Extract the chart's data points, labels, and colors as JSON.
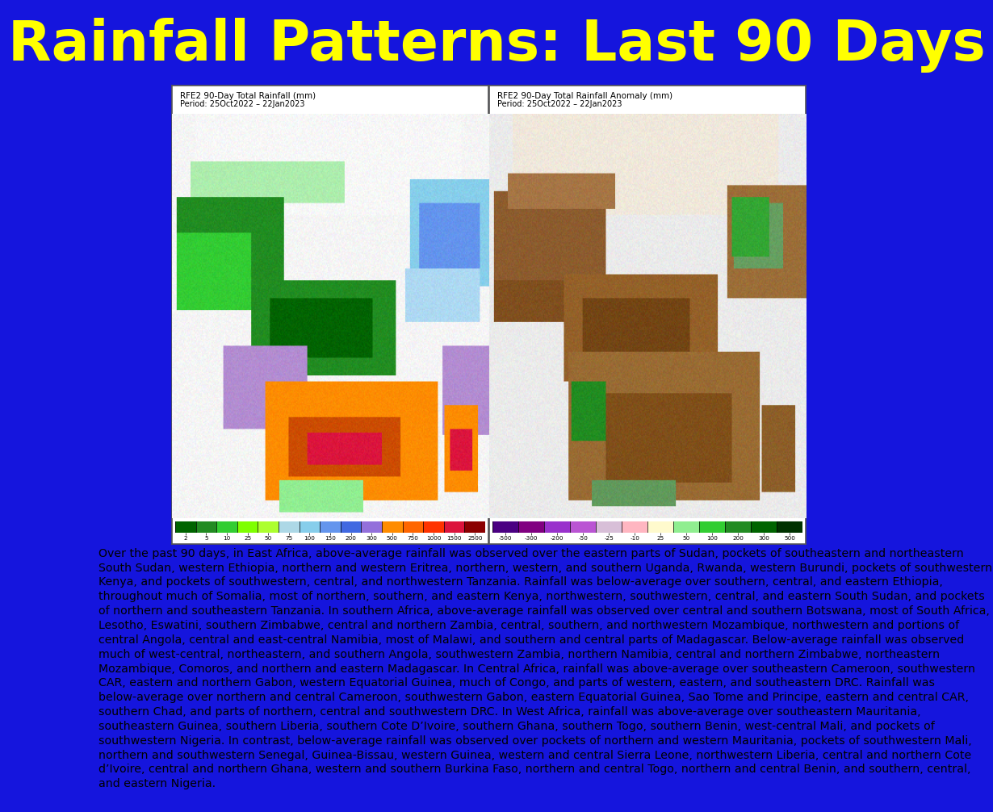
{
  "title": "Rainfall Patterns: Last 90 Days",
  "title_color": "#FFFF00",
  "title_fontsize": 50,
  "title_fontweight": "bold",
  "bg_color": "#1515DD",
  "left_map_title": "RFE2 90-Day Total Rainfall (mm)",
  "left_map_period": "Period: 25Oct2022 – 22Jan2023",
  "right_map_title": "RFE2 90-Day Total Rainfall Anomaly (mm)",
  "right_map_period": "Period: 25Oct2022 – 22Jan2023",
  "description": "Over the past 90 days, in East Africa, above-average rainfall was observed over the eastern parts of Sudan, pockets of southeastern and northeastern South Sudan, western Ethiopia, northern and western Eritrea, northern, western, and southern Uganda, Rwanda, western Burundi, pockets of southwestern Kenya, and pockets of southwestern, central, and northwestern Tanzania. Rainfall was below-average over southern, central, and eastern Ethiopia, throughout much of Somalia, most of northern, southern, and eastern Kenya, northwestern, southwestern, central, and eastern South Sudan, and pockets of northern and southeastern Tanzania. In southern Africa, above-average rainfall was observed over central and southern Botswana, most of South Africa, Lesotho, Eswatini, southern Zimbabwe, central and northern Zambia, central, southern, and northwestern Mozambique, northwestern and portions of central Angola, central and east-central Namibia, most of Malawi, and southern and central parts of Madagascar. Below-average rainfall was observed much of west-central, northeastern, and southern Angola, southwestern Zambia, northern Namibia, central and northern Zimbabwe, northeastern Mozambique, Comoros, and northern and eastern Madagascar. In Central Africa, rainfall was above-average over southeastern Cameroon, southwestern CAR, eastern and northern Gabon, western Equatorial Guinea, much of Congo, and parts of western, eastern, and southeastern DRC. Rainfall was below-average over northern and central Cameroon, southwestern Gabon, eastern Equatorial Guinea, Sao Tome and Principe, eastern and central CAR, southern Chad, and parts of northern, central and southwestern DRC. In West Africa, rainfall was above-average over southeastern Mauritania, southeastern Guinea, southern Liberia, southern Cote D’Ivoire, southern Ghana, southern Togo, southern Benin, west-central Mali, and pockets of southwestern Nigeria. In contrast, below-average rainfall was observed over pockets of northern and western Mauritania, pockets of southwestern Mali, northern and southwestern Senegal, Guinea-Bissau, western Guinea, western and central Sierra Leone, northwestern Liberia, central and northern Cote d’Ivoire, central and northern Ghana, western and southern Burkina Faso, northern and central Togo, northern and central Benin, and southern, central, and eastern Nigeria.",
  "desc_fontsize": 10.2,
  "desc_color": "#000000",
  "text_bg": "#FFFFFF",
  "left_cbar_colors": [
    "#006400",
    "#228B22",
    "#32CD32",
    "#7FFF00",
    "#ADFF2F",
    "#ADD8E6",
    "#87CEEB",
    "#6495ED",
    "#4169E1",
    "#9370DB",
    "#FF8C00",
    "#FF6600",
    "#FF3300",
    "#DC143C",
    "#8B0000"
  ],
  "left_cbar_labels": [
    "2",
    "5",
    "10",
    "25",
    "50",
    "75",
    "100",
    "150",
    "200",
    "300",
    "500",
    "750",
    "1000",
    "1500",
    "2500"
  ],
  "right_cbar_colors": [
    "#4B0082",
    "#800080",
    "#9932CC",
    "#BA55D3",
    "#D8BFD8",
    "#FFB6C1",
    "#FFFACD",
    "#90EE90",
    "#32CD32",
    "#228B22",
    "#006400",
    "#003200"
  ],
  "right_cbar_labels": [
    "-500",
    "-300",
    "-200",
    "-50",
    "-25",
    "-10",
    "25",
    "50",
    "100",
    "200",
    "300",
    "500"
  ]
}
